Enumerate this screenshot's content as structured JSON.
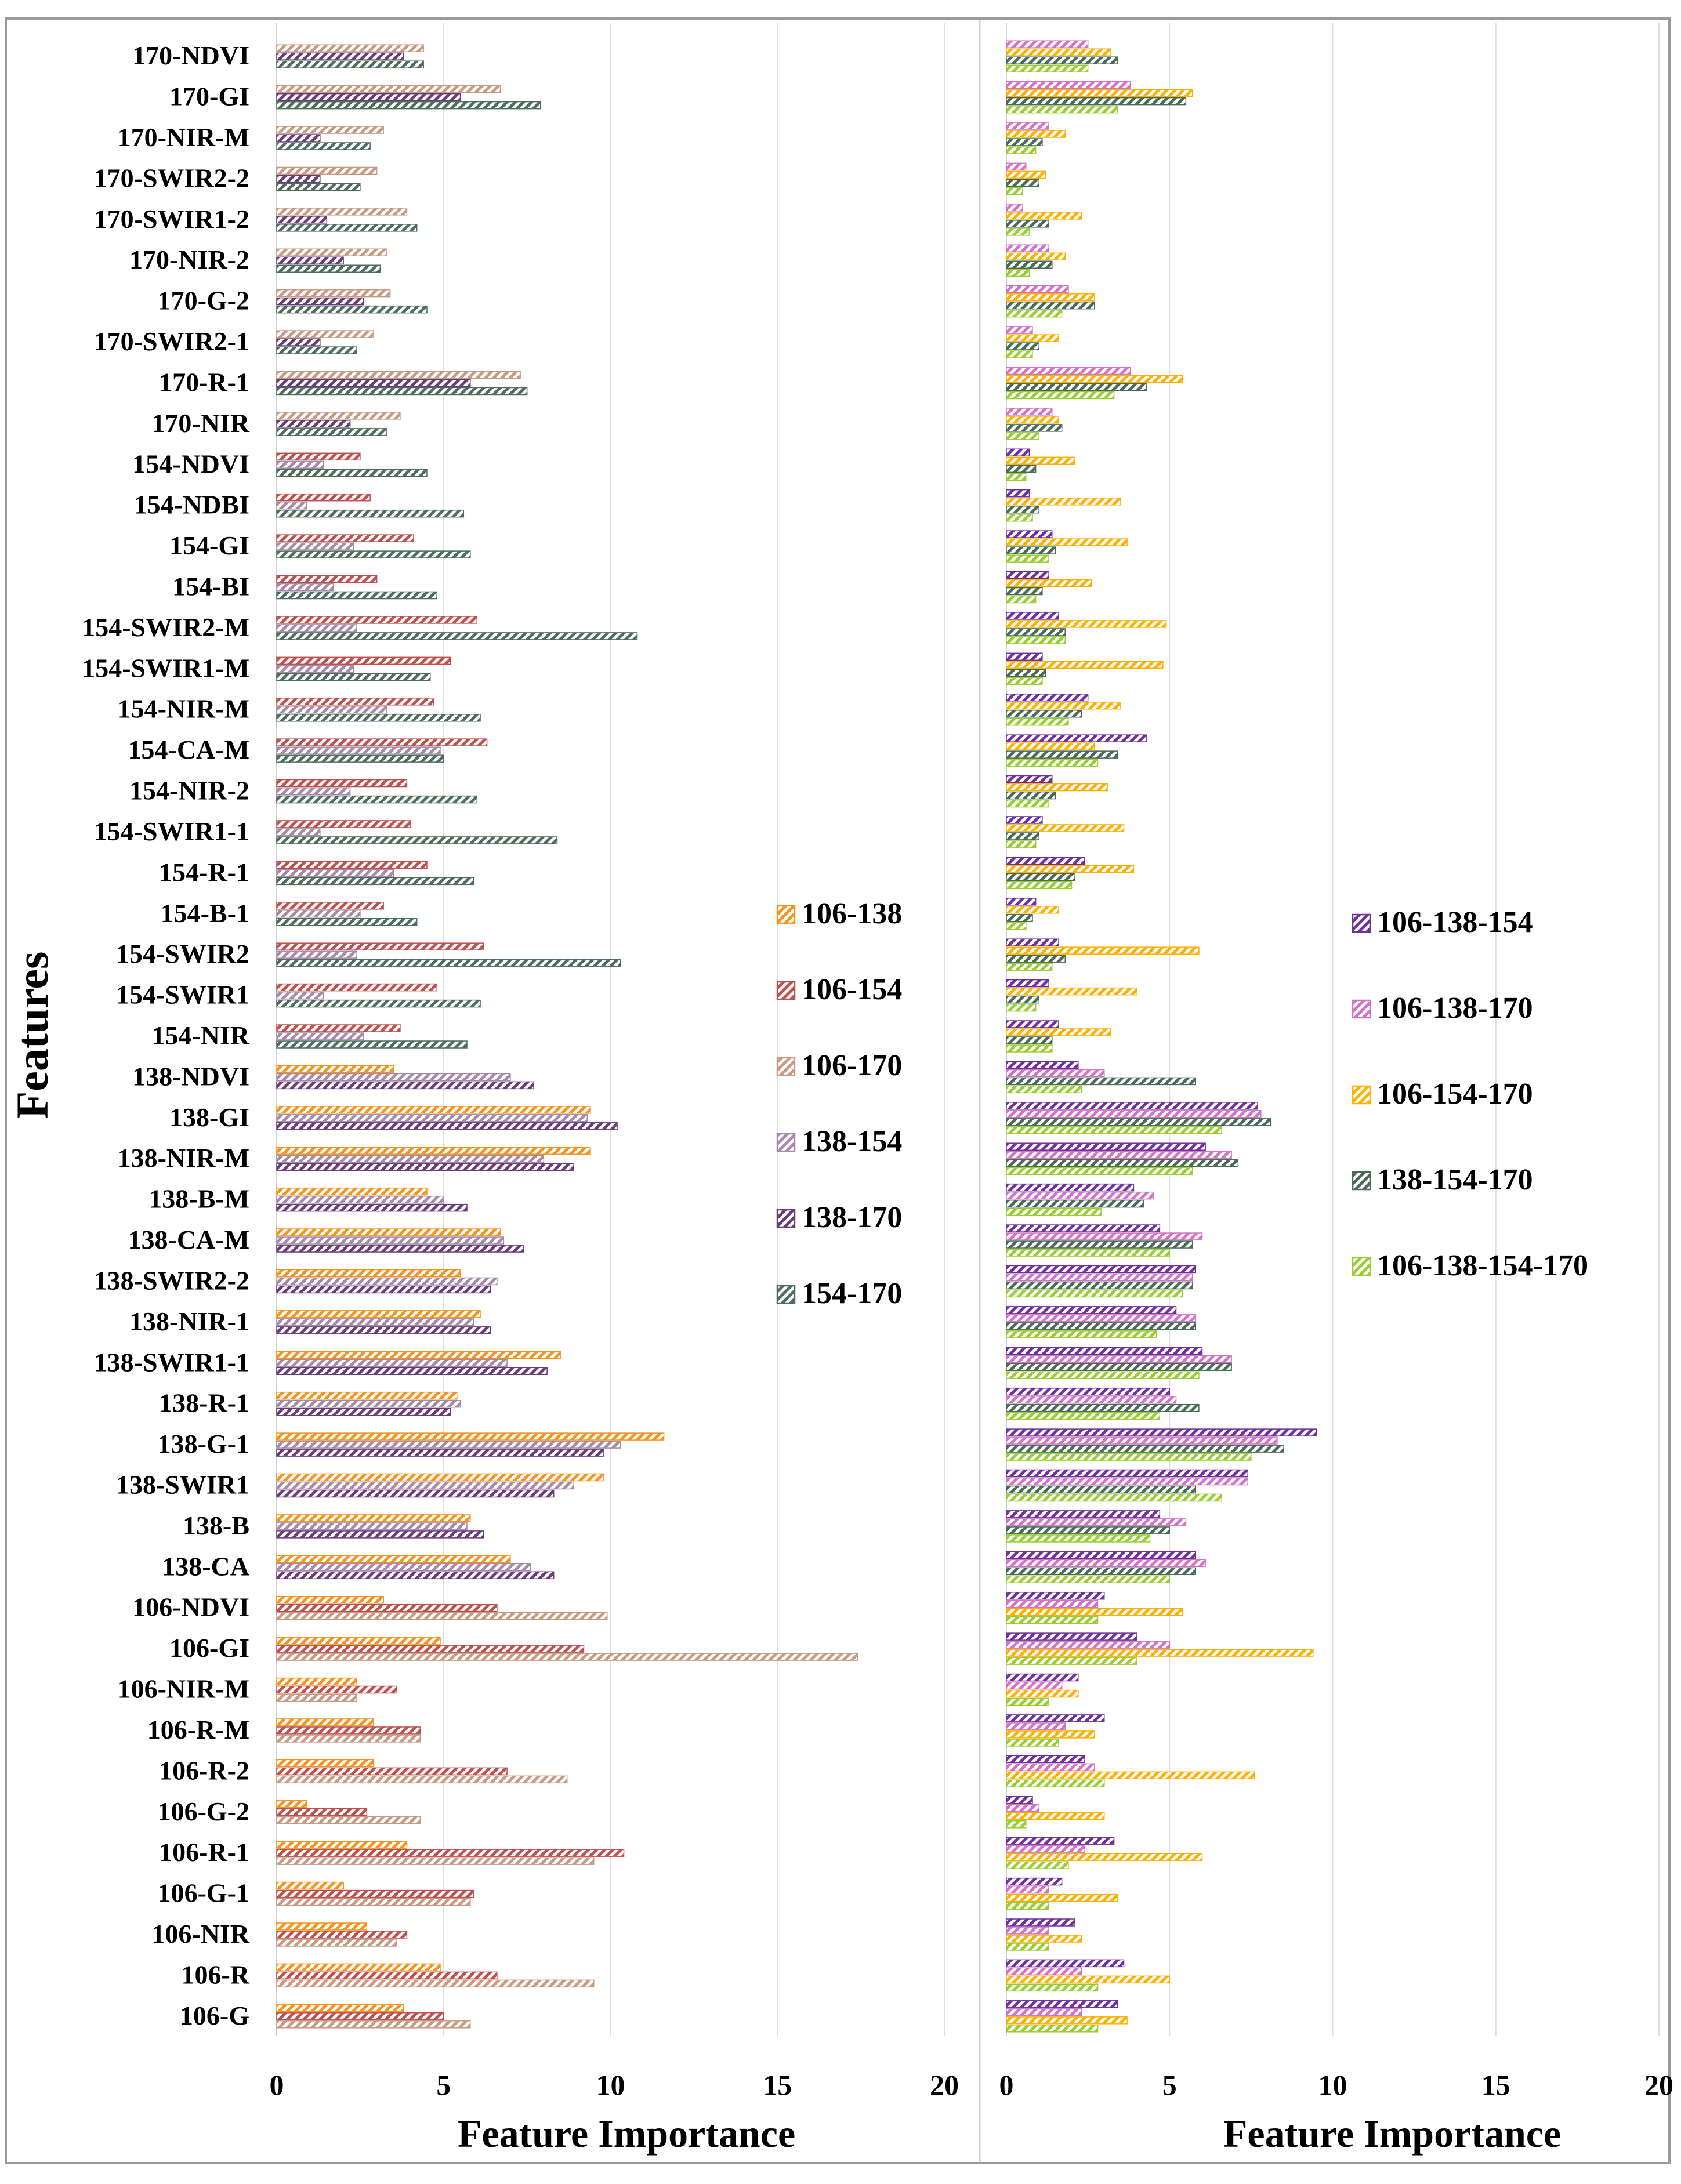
{
  "chart_data": [
    {
      "type": "bar",
      "orientation": "horizontal",
      "title": "",
      "xlabel": "Feature Importance",
      "ylabel": "Features",
      "xlim": [
        0,
        20
      ],
      "xticks": [
        0,
        5,
        10,
        15,
        20
      ],
      "grid": "vertical",
      "legend": "right",
      "categories": [
        "170-NDVI",
        "170-GI",
        "170-NIR-M",
        "170-SWIR2-2",
        "170-SWIR1-2",
        "170-NIR-2",
        "170-G-2",
        "170-SWIR2-1",
        "170-R-1",
        "170-NIR",
        "154-NDVI",
        "154-NDBI",
        "154-GI",
        "154-BI",
        "154-SWIR2-M",
        "154-SWIR1-M",
        "154-NIR-M",
        "154-CA-M",
        "154-NIR-2",
        "154-SWIR1-1",
        "154-R-1",
        "154-B-1",
        "154-SWIR2",
        "154-SWIR1",
        "154-NIR",
        "138-NDVI",
        "138-GI",
        "138-NIR-M",
        "138-B-M",
        "138-CA-M",
        "138-SWIR2-2",
        "138-NIR-1",
        "138-SWIR1-1",
        "138-R-1",
        "138-G-1",
        "138-SWIR1",
        "138-B",
        "138-CA",
        "106-NDVI",
        "106-GI",
        "106-NIR-M",
        "106-R-M",
        "106-R-2",
        "106-G-2",
        "106-R-1",
        "106-G-1",
        "106-NIR",
        "106-R",
        "106-G"
      ],
      "series": [
        {
          "name": "106-138",
          "color": "#f7941d",
          "values": [
            0,
            0,
            0,
            0,
            0,
            0,
            0,
            0,
            0,
            0,
            0,
            0,
            0,
            0,
            0,
            0,
            0,
            0,
            0,
            0,
            0,
            0,
            0,
            0,
            0,
            3.5,
            9.4,
            9.4,
            4.5,
            6.7,
            5.5,
            6.1,
            8.5,
            5.4,
            11.6,
            9.8,
            5.8,
            7.0,
            3.2,
            4.9,
            2.4,
            2.9,
            2.9,
            0.9,
            3.9,
            2.0,
            2.7,
            4.9,
            3.8
          ]
        },
        {
          "name": "106-154",
          "color": "#c0504d",
          "values": [
            0,
            0,
            0,
            0,
            0,
            0,
            0,
            0,
            0,
            0,
            2.5,
            2.8,
            4.1,
            3.0,
            6.0,
            5.2,
            4.7,
            6.3,
            3.9,
            4.0,
            4.5,
            3.2,
            6.2,
            4.8,
            3.7,
            0,
            0,
            0,
            0,
            0,
            0,
            0,
            0,
            0,
            0,
            0,
            0,
            0,
            6.6,
            9.2,
            3.6,
            4.3,
            6.9,
            2.7,
            10.4,
            5.9,
            3.9,
            6.6,
            5.0
          ]
        },
        {
          "name": "106-170",
          "color": "#c89a82",
          "values": [
            4.4,
            6.7,
            3.2,
            3.0,
            3.9,
            3.3,
            3.4,
            2.9,
            7.3,
            3.7,
            0,
            0,
            0,
            0,
            0,
            0,
            0,
            0,
            0,
            0,
            0,
            0,
            0,
            0,
            0,
            0,
            0,
            0,
            0,
            0,
            0,
            0,
            0,
            0,
            0,
            0,
            0,
            0,
            9.9,
            17.4,
            2.4,
            4.3,
            8.7,
            4.3,
            9.5,
            5.8,
            3.6,
            9.5,
            5.8
          ]
        },
        {
          "name": "138-154",
          "color": "#a78aa9",
          "values": [
            0,
            0,
            0,
            0,
            0,
            0,
            0,
            0,
            0,
            0,
            1.4,
            0.9,
            2.3,
            1.7,
            2.4,
            2.3,
            3.3,
            4.9,
            2.2,
            1.3,
            3.5,
            2.5,
            2.4,
            1.4,
            2.6,
            7.0,
            9.3,
            8.0,
            5.0,
            6.8,
            6.6,
            5.9,
            6.9,
            5.5,
            10.3,
            8.9,
            5.7,
            7.6,
            0,
            0,
            0,
            0,
            0,
            0,
            0,
            0,
            0,
            0,
            0
          ]
        },
        {
          "name": "138-170",
          "color": "#6a3d7a",
          "values": [
            3.8,
            5.5,
            1.3,
            1.3,
            1.5,
            2.0,
            2.6,
            1.3,
            5.8,
            2.2,
            0,
            0,
            0,
            0,
            0,
            0,
            0,
            0,
            0,
            0,
            0,
            0,
            0,
            0,
            0,
            7.7,
            10.2,
            8.9,
            5.7,
            7.4,
            6.4,
            6.4,
            8.1,
            5.2,
            9.8,
            8.3,
            6.2,
            8.3,
            0,
            0,
            0,
            0,
            0,
            0,
            0,
            0,
            0,
            0,
            0
          ]
        },
        {
          "name": "154-170",
          "color": "#4e6e5d",
          "values": [
            4.4,
            7.9,
            2.8,
            2.5,
            4.2,
            3.1,
            4.5,
            2.4,
            7.5,
            3.3,
            4.5,
            5.6,
            5.8,
            4.8,
            10.8,
            4.6,
            6.1,
            5.0,
            6.0,
            8.4,
            5.9,
            4.2,
            10.3,
            6.1,
            5.7,
            0,
            0,
            0,
            0,
            0,
            0,
            0,
            0,
            0,
            0,
            0,
            0,
            0,
            0,
            0,
            0,
            0,
            0,
            0,
            0,
            0,
            0,
            0,
            0
          ]
        }
      ]
    },
    {
      "type": "bar",
      "orientation": "horizontal",
      "title": "",
      "xlabel": "Feature Importance",
      "ylabel": "",
      "xlim": [
        0,
        20
      ],
      "xticks": [
        0,
        5,
        10,
        15,
        20
      ],
      "grid": "vertical",
      "legend": "right",
      "categories": [
        "170-NDVI",
        "170-GI",
        "170-NIR-M",
        "170-SWIR2-2",
        "170-SWIR1-2",
        "170-NIR-2",
        "170-G-2",
        "170-SWIR2-1",
        "170-R-1",
        "170-NIR",
        "154-NDVI",
        "154-NDBI",
        "154-GI",
        "154-BI",
        "154-SWIR2-M",
        "154-SWIR1-M",
        "154-NIR-M",
        "154-CA-M",
        "154-NIR-2",
        "154-SWIR1-1",
        "154-R-1",
        "154-B-1",
        "154-SWIR2",
        "154-SWIR1",
        "154-NIR",
        "138-NDVI",
        "138-GI",
        "138-NIR-M",
        "138-B-M",
        "138-CA-M",
        "138-SWIR2-2",
        "138-NIR-1",
        "138-SWIR1-1",
        "138-R-1",
        "138-G-1",
        "138-SWIR1",
        "138-B",
        "138-CA",
        "106-NDVI",
        "106-GI",
        "106-NIR-M",
        "106-R-M",
        "106-R-2",
        "106-G-2",
        "106-R-1",
        "106-G-1",
        "106-NIR",
        "106-R",
        "106-G"
      ],
      "series": [
        {
          "name": "106-138-154",
          "color": "#7030a0",
          "values": [
            0,
            0,
            0,
            0,
            0,
            0,
            0,
            0,
            0,
            0,
            0.7,
            0.7,
            1.4,
            1.3,
            1.6,
            1.1,
            2.5,
            4.3,
            1.4,
            1.1,
            2.4,
            0.9,
            1.6,
            1.3,
            1.6,
            2.2,
            7.7,
            6.1,
            3.9,
            4.7,
            5.8,
            5.2,
            6.0,
            5.0,
            9.5,
            7.4,
            4.7,
            5.8,
            3.0,
            4.0,
            2.2,
            3.0,
            2.4,
            0.8,
            3.3,
            1.7,
            2.1,
            3.6,
            3.4
          ]
        },
        {
          "name": "106-138-170",
          "color": "#d472c8",
          "values": [
            2.5,
            3.8,
            1.3,
            0.6,
            0.5,
            1.3,
            1.9,
            0.8,
            3.8,
            1.4,
            0,
            0,
            0,
            0,
            0,
            0,
            0,
            0,
            0,
            0,
            0,
            0,
            0,
            0,
            0,
            3.0,
            7.8,
            6.9,
            4.5,
            6.0,
            5.7,
            5.8,
            6.9,
            5.2,
            8.3,
            7.4,
            5.5,
            6.1,
            2.8,
            5.0,
            1.7,
            1.8,
            2.7,
            1.0,
            2.4,
            1.3,
            1.3,
            2.3,
            2.3
          ]
        },
        {
          "name": "106-154-170",
          "color": "#ffb000",
          "values": [
            3.2,
            5.7,
            1.8,
            1.2,
            2.3,
            1.8,
            2.7,
            1.6,
            5.4,
            1.6,
            2.1,
            3.5,
            3.7,
            2.6,
            4.9,
            4.8,
            3.5,
            2.7,
            3.1,
            3.6,
            3.9,
            1.6,
            5.9,
            4.0,
            3.2,
            0,
            0,
            0,
            0,
            0,
            0,
            0,
            0,
            0,
            0,
            0,
            0,
            0,
            5.4,
            9.4,
            2.2,
            2.7,
            7.6,
            3.0,
            6.0,
            3.4,
            2.3,
            5.0,
            3.7
          ]
        },
        {
          "name": "138-154-170",
          "color": "#4a6b58",
          "values": [
            3.4,
            5.5,
            1.1,
            1.0,
            1.3,
            1.4,
            2.7,
            1.0,
            4.3,
            1.7,
            0.9,
            1.0,
            1.5,
            1.1,
            1.8,
            1.2,
            2.3,
            3.4,
            1.5,
            1.0,
            2.1,
            0.8,
            1.8,
            1.0,
            1.4,
            5.8,
            8.1,
            7.1,
            4.2,
            5.7,
            5.7,
            5.8,
            6.9,
            5.9,
            8.5,
            5.8,
            5.0,
            5.8,
            0,
            0,
            0,
            0,
            0,
            0,
            0,
            0,
            0,
            0,
            0
          ]
        },
        {
          "name": "106-138-154-170",
          "color": "#9acd32",
          "values": [
            2.5,
            3.4,
            0.9,
            0.5,
            0.7,
            0.7,
            1.7,
            0.8,
            3.3,
            1.0,
            0.6,
            0.8,
            1.3,
            0.9,
            1.8,
            1.1,
            1.9,
            2.8,
            1.3,
            0.9,
            2.0,
            0.6,
            1.4,
            0.9,
            1.4,
            2.3,
            6.6,
            5.7,
            2.9,
            5.0,
            5.4,
            4.6,
            5.9,
            4.7,
            7.5,
            6.6,
            4.4,
            5.0,
            2.8,
            4.0,
            1.3,
            1.6,
            3.0,
            0.6,
            1.9,
            1.3,
            1.3,
            2.8,
            2.8
          ]
        }
      ]
    }
  ]
}
